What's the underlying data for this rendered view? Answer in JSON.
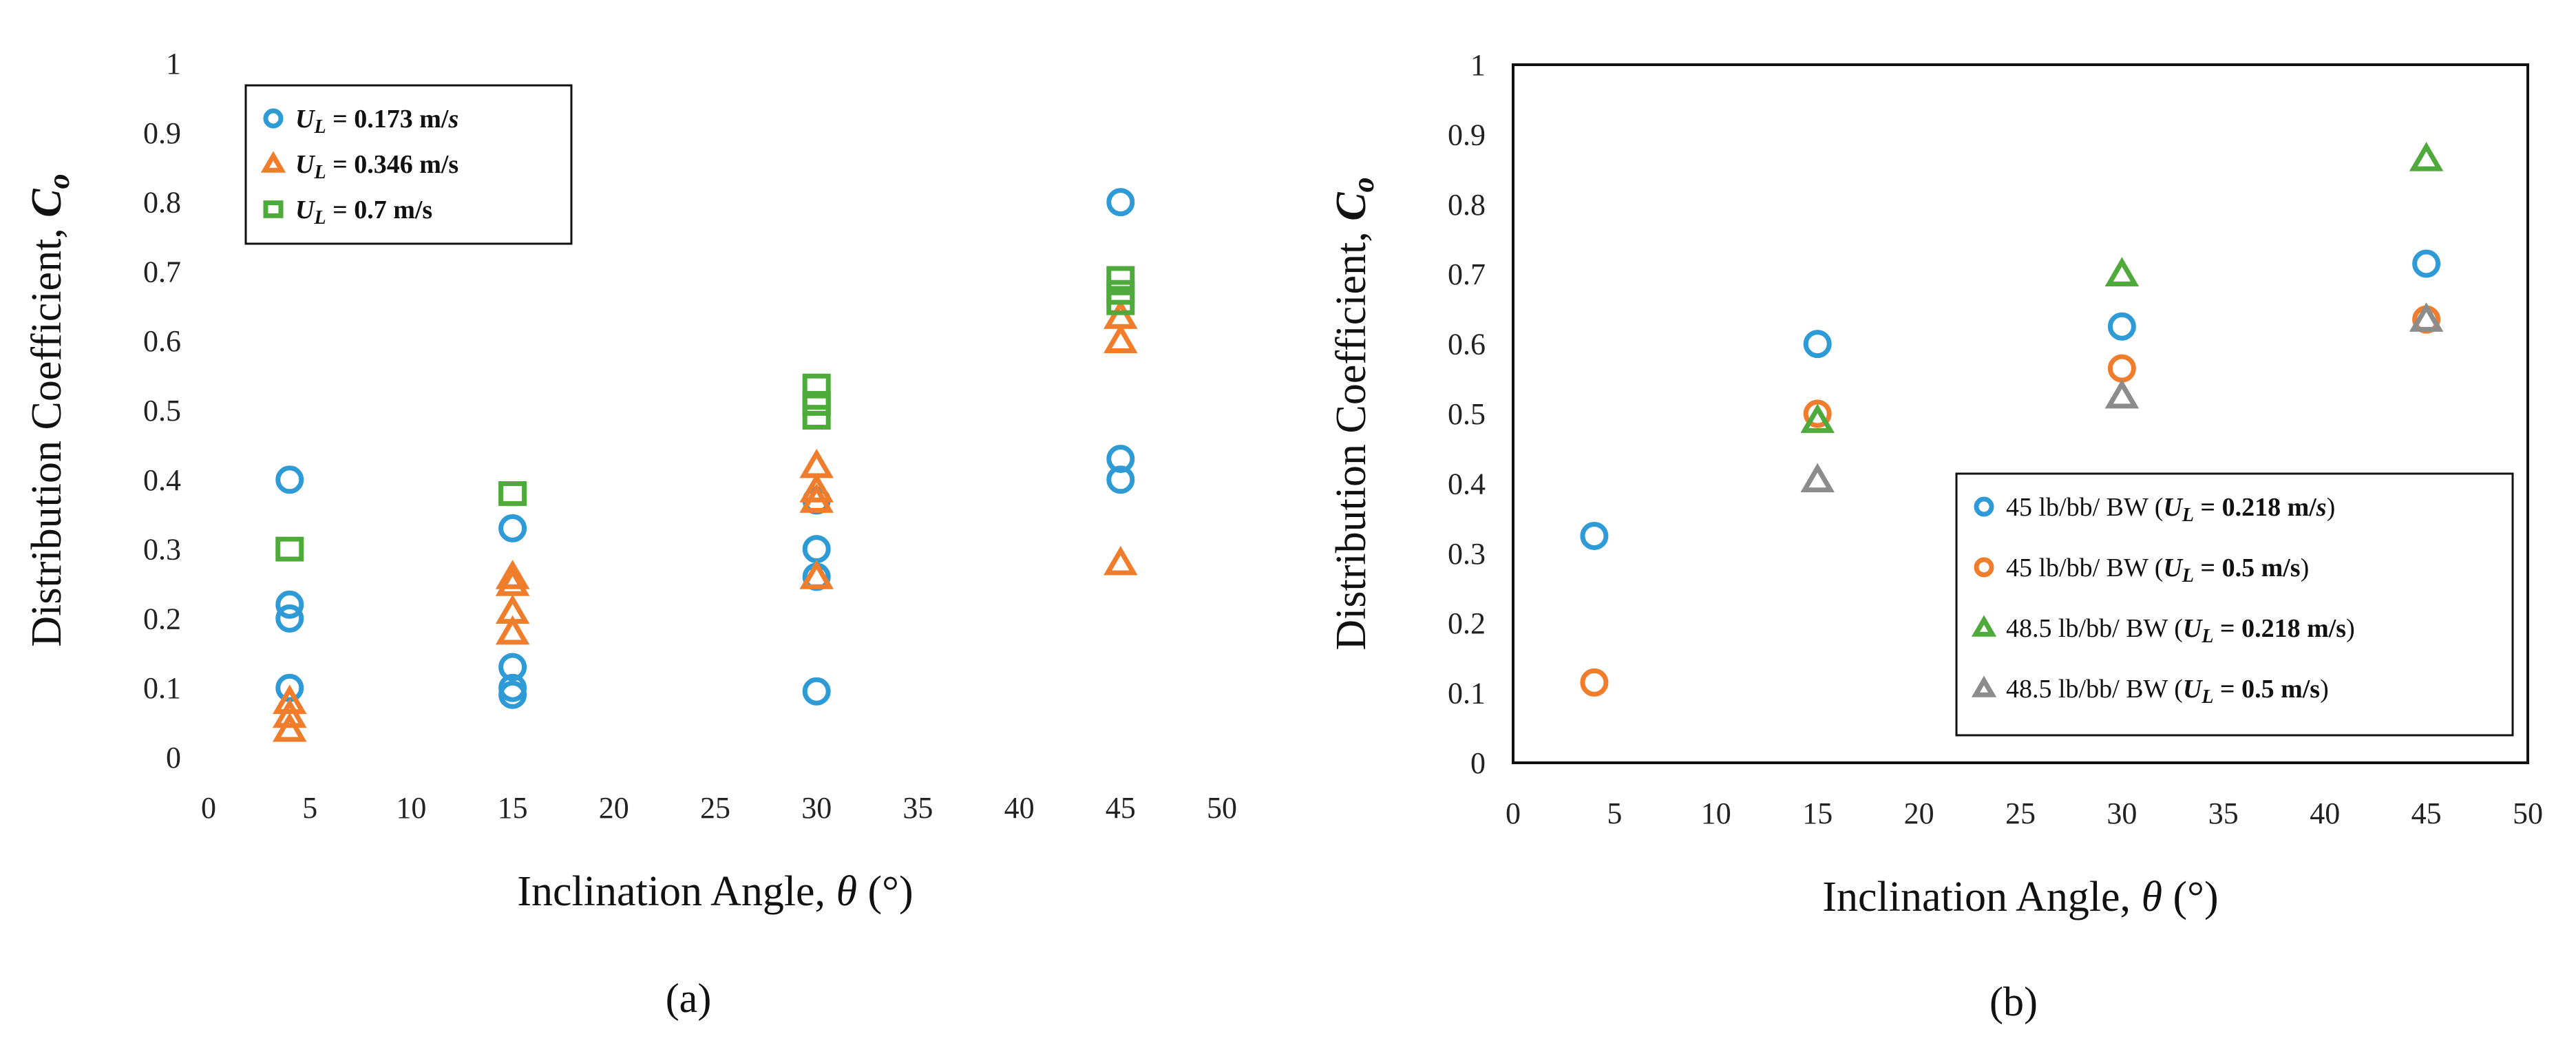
{
  "chart_data": [
    {
      "type": "scatter",
      "panel_label": "(a)",
      "xlabel": "Inclination Angle, θ (°)",
      "xlabel_main": "Inclination Angle, ",
      "xlabel_sym": "θ",
      "xlabel_unit": " (°)",
      "ylabel": "Distribution Coefficient, C_o",
      "ylabel_main": "Distribution Coefficient, ",
      "ylabel_sym": "C",
      "ylabel_sub": "o",
      "xlim": [
        0,
        50
      ],
      "ylim": [
        0,
        1
      ],
      "xticks": [
        0,
        5,
        10,
        15,
        20,
        25,
        30,
        35,
        40,
        45,
        50
      ],
      "xtick_labels": [
        "0",
        "5",
        "10",
        "15",
        "20",
        "25",
        "30",
        "35",
        "40",
        "45",
        "50"
      ],
      "yticks": [
        0,
        0.1,
        0.2,
        0.3,
        0.4,
        0.5,
        0.6,
        0.7,
        0.8,
        0.9,
        1
      ],
      "ytick_labels": [
        "0",
        "0.1",
        "0.2",
        "0.3",
        "0.4",
        "0.5",
        "0.6",
        "0.7",
        "0.8",
        "0.9",
        "1"
      ],
      "grid": false,
      "frame": false,
      "legend_position": "top-left",
      "series": [
        {
          "name": "U_L = 0.173 m/s",
          "legend": {
            "sym": "U",
            "sub": "L",
            "eq": " = ",
            "val": "0.173",
            "unit": " m/",
            "unit_tail": "s"
          },
          "color": "#2E9BD6",
          "marker": "circle",
          "x": [
            4,
            4,
            4,
            4,
            15,
            15,
            15,
            15,
            30,
            30,
            30,
            30,
            45,
            45,
            45
          ],
          "y": [
            0.4,
            0.22,
            0.2,
            0.1,
            0.33,
            0.13,
            0.1,
            0.09,
            0.37,
            0.3,
            0.26,
            0.095,
            0.8,
            0.43,
            0.4
          ]
        },
        {
          "name": "U_L = 0.346 m/s",
          "legend": {
            "sym": "U",
            "sub": "L",
            "eq": " = ",
            "val": "0.346",
            "unit": " m/s",
            "unit_tail": ""
          },
          "color": "#F07D2B",
          "marker": "triangle",
          "x": [
            4,
            4,
            4,
            15,
            15,
            15,
            15,
            30,
            30,
            30,
            30,
            45,
            45,
            45
          ],
          "y": [
            0.08,
            0.06,
            0.04,
            0.26,
            0.25,
            0.21,
            0.18,
            0.42,
            0.385,
            0.37,
            0.26,
            0.635,
            0.6,
            0.28
          ]
        },
        {
          "name": "U_L = 0.7 m/s",
          "legend": {
            "sym": "U",
            "sub": "L",
            "eq": " = ",
            "val": "0.7",
            "unit": " m/s",
            "unit_tail": ""
          },
          "color": "#4EAA3A",
          "marker": "square",
          "x": [
            4,
            15,
            30,
            30,
            30,
            30,
            45,
            45,
            45
          ],
          "y": [
            0.3,
            0.38,
            0.535,
            0.51,
            0.49,
            0.51,
            0.69,
            0.67,
            0.655
          ]
        }
      ]
    },
    {
      "type": "scatter",
      "panel_label": "(b)",
      "xlabel": "Inclination Angle, θ (°)",
      "xlabel_main": "Inclination Angle, ",
      "xlabel_sym": "θ",
      "xlabel_unit": " (°)",
      "ylabel": "Distribution Coefficient, C_o",
      "ylabel_main": "Distribution Coefficient, ",
      "ylabel_sym": "C",
      "ylabel_sub": "o",
      "xlim": [
        0,
        50
      ],
      "ylim": [
        0,
        1
      ],
      "xticks": [
        0,
        5,
        10,
        15,
        20,
        25,
        30,
        35,
        40,
        45,
        50
      ],
      "xtick_labels": [
        "0",
        "5",
        "10",
        "15",
        "20",
        "25",
        "30",
        "35",
        "40",
        "45",
        "50"
      ],
      "yticks": [
        0,
        0.1,
        0.2,
        0.3,
        0.4,
        0.5,
        0.6,
        0.7,
        0.8,
        0.9,
        1
      ],
      "ytick_labels": [
        "0",
        "0.1",
        "0.2",
        "0.3",
        "0.4",
        "0.5",
        "0.6",
        "0.7",
        "0.8",
        "0.9",
        "1"
      ],
      "grid": false,
      "frame": true,
      "legend_position": "bottom-right",
      "series": [
        {
          "name": "45 lb/bb/ BW (U_L = 0.218 m/s)",
          "legend": {
            "pre": "45 lb/bb/ BW (",
            "sym": "U",
            "sub": "L",
            "eq": " = ",
            "val": "0.218",
            "unit": " m/",
            "unit_tail": "s",
            "post": ")"
          },
          "color": "#2E9BD6",
          "marker": "circle",
          "x": [
            4,
            15,
            30,
            45
          ],
          "y": [
            0.325,
            0.6,
            0.625,
            0.715
          ]
        },
        {
          "name": "45 lb/bb/ BW (U_L = 0.5 m/s)",
          "legend": {
            "pre": "45 lb/bb/ BW (",
            "sym": "U",
            "sub": "L",
            "eq": " = ",
            "val": "0.5",
            "unit": " m/s",
            "unit_tail": "",
            "post": ")"
          },
          "color": "#F07D2B",
          "marker": "circle",
          "x": [
            4,
            15,
            30,
            45
          ],
          "y": [
            0.115,
            0.5,
            0.565,
            0.635
          ]
        },
        {
          "name": "48.5 lb/bb/ BW (U_L = 0.218 m/s)",
          "legend": {
            "pre": "48.5 lb/bb/ BW (",
            "sym": "U",
            "sub": "L",
            "eq": " = ",
            "val": "0.218",
            "unit": " m/s",
            "unit_tail": "",
            "post": ")"
          },
          "color": "#4EAA3A",
          "marker": "triangle",
          "x": [
            15,
            30,
            45
          ],
          "y": [
            0.49,
            0.7,
            0.865
          ]
        },
        {
          "name": "48.5 lb/bb/ BW (U_L = 0.5 m/s)",
          "legend": {
            "pre": "48.5 lb/bb/ BW (",
            "sym": "U",
            "sub": "L",
            "eq": " = ",
            "val": "0.5",
            "unit": " m/s",
            "unit_tail": "",
            "post": ")"
          },
          "color": "#8C8C8C",
          "marker": "triangle",
          "x": [
            15,
            30,
            45
          ],
          "y": [
            0.405,
            0.525,
            0.635
          ]
        }
      ]
    }
  ]
}
